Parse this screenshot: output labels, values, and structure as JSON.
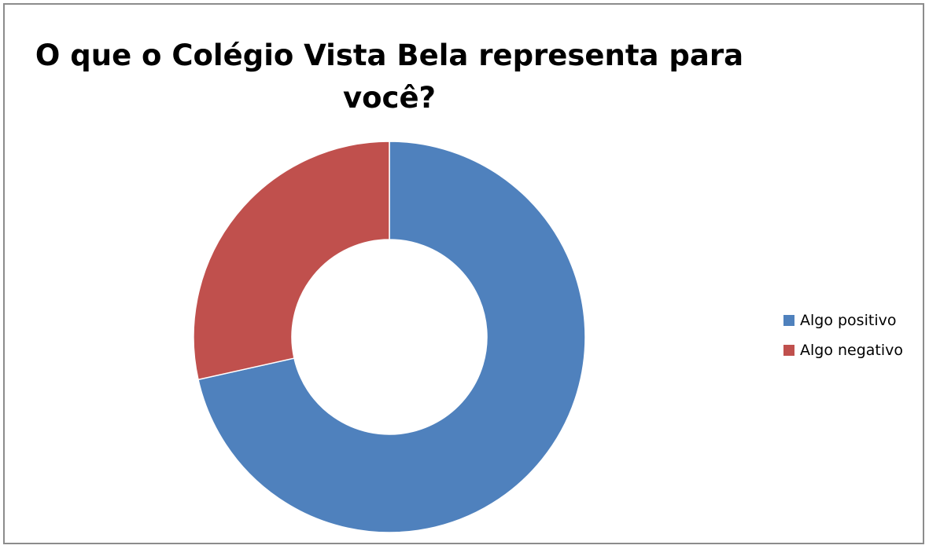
{
  "chart_data": {
    "type": "pie",
    "variant": "doughnut",
    "title": "O que o Colégio Vista Bela representa para você?",
    "categories": [
      "Algo positivo",
      "Algo negativo"
    ],
    "values": [
      71.5,
      28.5
    ],
    "value_unit": "%",
    "colors": [
      "#4F81BD",
      "#C0504D"
    ],
    "slice_border_color": "#FFFFFF",
    "start_angle_deg": 0,
    "direction": "clockwise",
    "legend_position": "right",
    "data_labels": false
  }
}
